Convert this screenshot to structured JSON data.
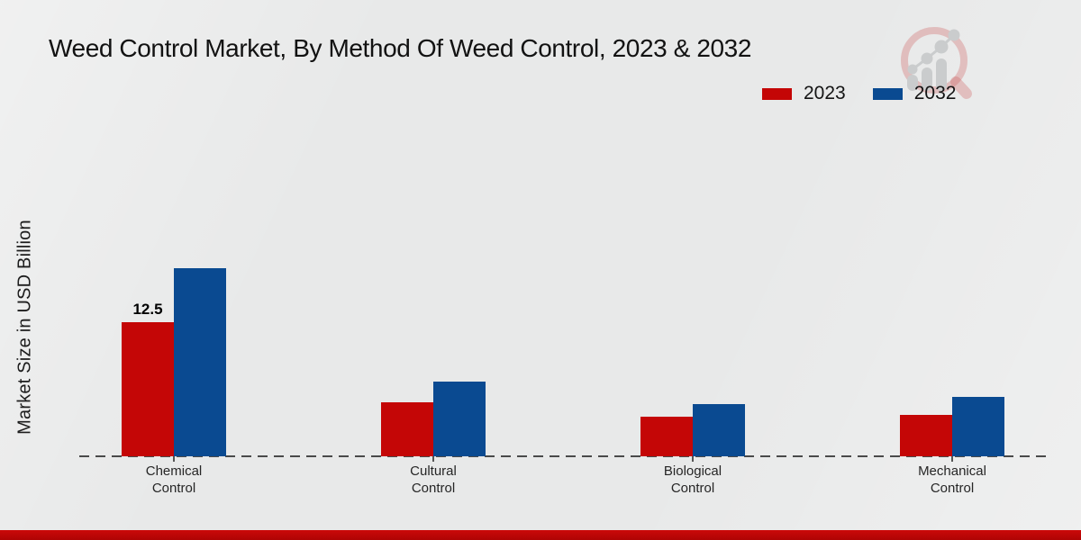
{
  "page": {
    "background_color": "#e8e9e9",
    "bottom_band_color": "#c00505"
  },
  "header": {
    "title": "Weed Control Market, By Method Of Weed Control, 2023 & 2032"
  },
  "icons": {
    "brand_logo": "magnifier-bar-chart"
  },
  "legend": {
    "items": [
      {
        "label": "2023",
        "color": "#c40606"
      },
      {
        "label": "2032",
        "color": "#0a4a91"
      }
    ]
  },
  "y_axis": {
    "label": "Market Size in USD Billion"
  },
  "chart_data": {
    "type": "bar",
    "title": "Weed Control Market, By Method Of Weed Control, 2023 & 2032",
    "categories": [
      "Chemical Control",
      "Cultural Control",
      "Biological Control",
      "Mechanical Control"
    ],
    "series": [
      {
        "name": "2023",
        "color": "#c40606",
        "values": [
          12.5,
          5.0,
          3.7,
          3.9
        ]
      },
      {
        "name": "2032",
        "color": "#0a4a91",
        "values": [
          17.5,
          7.0,
          4.9,
          5.5
        ]
      }
    ],
    "xlabel": "",
    "ylabel": "Market Size in USD Billion",
    "ylim": [
      0,
      20
    ],
    "grid": false,
    "legend_position": "top-right",
    "baseline_style": "dashed",
    "data_labels": [
      {
        "category_index": 0,
        "series_index": 0,
        "text": "12.5"
      }
    ]
  }
}
